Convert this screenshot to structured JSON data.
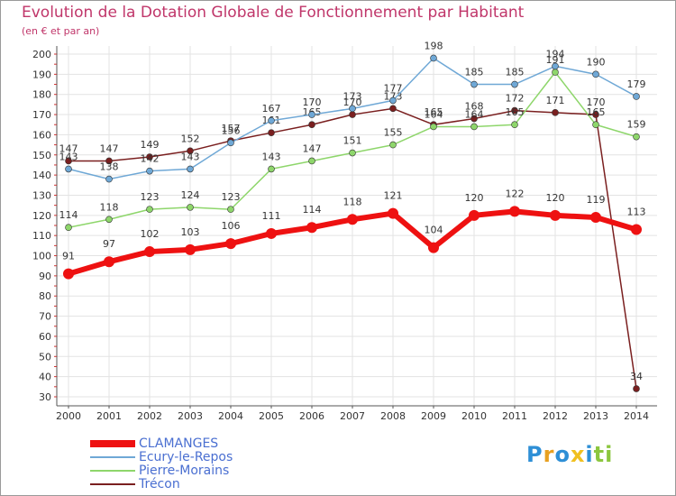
{
  "header": {
    "title": "Evolution de la Dotation Globale de Fonctionnement par Habitant",
    "subtitle": "(en € et par an)"
  },
  "logo": {
    "text": "Proxiti",
    "letter_colors": [
      "#2e8fd6",
      "#e8a020",
      "#2e8fd6",
      "#f0c020",
      "#2e8fd6",
      "#8cc63f",
      "#8cc63f"
    ]
  },
  "chart_data": {
    "type": "line",
    "title": "Evolution de la Dotation Globale de Fonctionnement par Habitant",
    "subtitle": "(en € et par an)",
    "xlabel": "",
    "ylabel": "",
    "x": [
      2000,
      2001,
      2002,
      2003,
      2004,
      2005,
      2006,
      2007,
      2008,
      2009,
      2010,
      2011,
      2012,
      2013,
      2014
    ],
    "yticks": [
      30,
      40,
      50,
      60,
      70,
      80,
      90,
      100,
      110,
      120,
      130,
      140,
      150,
      160,
      170,
      180,
      190,
      200
    ],
    "ylim": [
      30,
      200
    ],
    "grid": true,
    "legend_position": "bottom-left",
    "series": [
      {
        "name": "Trécon",
        "color": "#7a1f1f",
        "values": [
          147,
          147,
          149,
          152,
          157,
          161,
          165,
          170,
          173,
          165,
          168,
          172,
          171,
          170,
          34
        ]
      },
      {
        "name": "Pierre-Morains",
        "color": "#8ed66b",
        "values": [
          114,
          118,
          123,
          124,
          123,
          143,
          147,
          151,
          155,
          164,
          164,
          165,
          191,
          165,
          159
        ]
      },
      {
        "name": "Ecury-le-Repos",
        "color": "#6fa8d6",
        "values": [
          143,
          138,
          142,
          143,
          156,
          167,
          170,
          173,
          177,
          198,
          185,
          185,
          194,
          190,
          179
        ]
      },
      {
        "name": "CLAMANGES",
        "color": "#ee1111",
        "values": [
          91,
          97,
          102,
          103,
          106,
          111,
          114,
          118,
          121,
          104,
          120,
          122,
          120,
          119,
          113
        ]
      }
    ]
  }
}
